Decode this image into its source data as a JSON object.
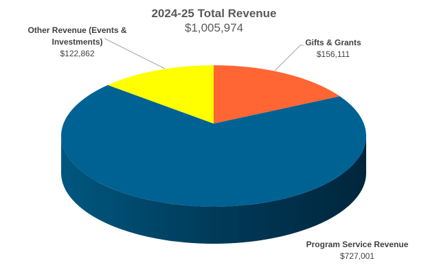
{
  "chart_data": {
    "type": "pie",
    "style": "3d",
    "title": "2024-25 Total Revenue",
    "subtitle": "$1,005,974",
    "start_angle": "top, clockwise",
    "slices": [
      {
        "name": "Gifts & Grants",
        "value": 156111,
        "label": "$156,111",
        "color": "#FF6633"
      },
      {
        "name": "Program Service Revenue",
        "value": 727001,
        "label": "$727,001",
        "color": "#006193"
      },
      {
        "name": "Other Revenue (Events & Investments)",
        "value": 122862,
        "label": "$122,862",
        "color": "#FFFF00"
      }
    ],
    "legend": "none"
  }
}
